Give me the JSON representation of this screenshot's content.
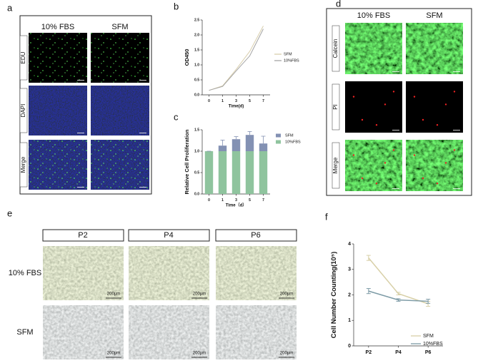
{
  "panel_labels": [
    "a",
    "b",
    "c",
    "d",
    "e",
    "f"
  ],
  "panel_a": {
    "columns": [
      "10% FBS",
      "SFM"
    ],
    "rows": [
      "EDU",
      "DAPI",
      "Merge"
    ]
  },
  "panel_d": {
    "columns": [
      "10% FBS",
      "SFM"
    ],
    "rows": [
      "Calcein",
      "PI",
      "Merge"
    ]
  },
  "panel_e": {
    "columns": [
      "P2",
      "P4",
      "P6"
    ],
    "rows": [
      "10% FBS",
      "SFM"
    ],
    "scale_bar": "200μm"
  },
  "chart_data": [
    {
      "type": "line",
      "xlabel": "Time(d)",
      "ylabel": "OD450",
      "categories": [
        "0",
        "1",
        "3",
        "5",
        "7"
      ],
      "series": [
        {
          "name": "SFM",
          "color": "#d9cfae",
          "values": [
            0.15,
            0.3,
            0.85,
            1.45,
            2.3
          ]
        },
        {
          "name": "10%FBS",
          "color": "#a3a3a3",
          "values": [
            0.15,
            0.28,
            0.8,
            1.3,
            2.2
          ]
        }
      ],
      "ylim": [
        0,
        2.5
      ],
      "yticks": [
        {
          "value": 0,
          "label": "0.0"
        },
        {
          "value": 0.5,
          "label": "0.5"
        },
        {
          "value": 1,
          "label": "1.0"
        },
        {
          "value": 1.5,
          "label": "1.5"
        },
        {
          "value": 2,
          "label": "2.0"
        },
        {
          "value": 2.5,
          "label": "2.5"
        }
      ],
      "legend_position": "right"
    },
    {
      "type": "bar",
      "stacked": true,
      "xlabel": "Time（d）",
      "ylabel": "Relative Cell Proliferation",
      "categories": [
        "0",
        "1",
        "3",
        "5",
        "7"
      ],
      "series": [
        {
          "name": "10%FBS",
          "color": "#8fc49e",
          "values": [
            1,
            1,
            1,
            1,
            1
          ]
        },
        {
          "name": "SFM",
          "color": "#8391b3",
          "values": [
            0,
            0.13,
            0.28,
            0.38,
            0.18
          ],
          "errors": [
            0,
            0.13,
            0.06,
            0.08,
            0.17
          ]
        }
      ],
      "ylim": [
        0,
        1.5
      ],
      "yticks": [
        {
          "value": 0,
          "label": "0.0"
        },
        {
          "value": 0.5,
          "label": "0.5"
        },
        {
          "value": 1,
          "label": "1.0"
        },
        {
          "value": 1.5,
          "label": "1.5"
        }
      ],
      "legend_position": "upper right"
    },
    {
      "type": "line",
      "ylabel": "Cell Number Counting(10⁵)",
      "categories": [
        "P2",
        "P4",
        "P6"
      ],
      "series": [
        {
          "name": "SFM",
          "color": "#d8d0a8",
          "values": [
            3.45,
            2.05,
            1.65
          ],
          "errors": [
            0.1,
            0.05,
            0.1
          ]
        },
        {
          "name": "10%FBS",
          "color": "#7d9ba6",
          "values": [
            2.15,
            1.8,
            1.75
          ],
          "errors": [
            0.1,
            0.05,
            0.08
          ]
        }
      ],
      "ylim": [
        0,
        4
      ],
      "yticks": [
        0,
        1,
        2,
        3,
        4
      ],
      "legend_position": "lower right"
    }
  ]
}
